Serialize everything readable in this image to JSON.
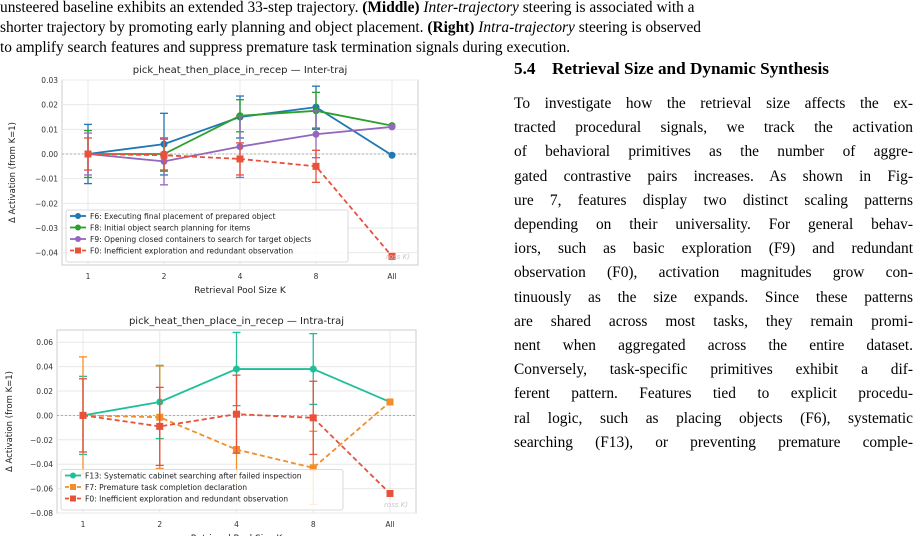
{
  "caption": {
    "line1_a": "unsteered baseline exhibits an extended 33-step trajectory. ",
    "line1_b": "(Middle)",
    "line1_c": " ",
    "line1_d": "Inter-trajectory",
    "line1_e": " steering is associated with a",
    "line2_a": "shorter trajectory by promoting early planning and object placement. ",
    "line2_b": "(Right)",
    "line2_c": " ",
    "line2_d": "Intra-trajectory",
    "line2_e": " steering is observed",
    "line3": "to amplify search features and suppress premature task termination signals during execution."
  },
  "section": {
    "number": "5.4",
    "title": "Retrieval Size and Dynamic Synthesis"
  },
  "body_lines": [
    "To investigate how the retrieval size affects the ex-",
    "tracted procedural signals, we track the activation",
    "of behavioral primitives as the number of aggre-",
    "gated contrastive pairs increases. As shown in Fig-",
    "ure 7, features display two distinct scaling patterns",
    "depending on their universality. For general behav-",
    "iors, such as basic exploration (F9) and redundant",
    "observation (F0), activation magnitudes grow con-",
    "tinuously as the size expands. Since these patterns",
    "are shared across most tasks, they remain promi-",
    "nent when aggregated across the entire dataset.",
    "Conversely, task-specific primitives exhibit a dif-",
    "ferent pattern. Features tied to explicit procedu-",
    "ral logic, such as placing objects (F6), systematic",
    "searching (F13), or preventing premature comple-"
  ],
  "chart_data": [
    {
      "type": "line",
      "title": "pick_heat_then_place_in_recep — Inter-traj",
      "xlabel": "Retrieval Pool Size K",
      "ylabel": "Δ Activation (from K=1)",
      "categories": [
        "1",
        "2",
        "4",
        "8",
        "All"
      ],
      "ylim": [
        -0.045,
        0.03
      ],
      "yticks": [
        0.03,
        0.02,
        0.01,
        0.0,
        -0.01,
        -0.02,
        -0.03,
        -0.04
      ],
      "ytick_labels": [
        "0.03",
        "0.02",
        "0.01",
        "0.00",
        "−0.01",
        "−0.02",
        "−0.03",
        "−0.04"
      ],
      "grid": true,
      "legend": "bottom-left",
      "watermark": "ross K)",
      "series": [
        {
          "name": "F6: Executing final placement of prepared object",
          "color": "#1f77b4",
          "marker": "circle",
          "dashed": false,
          "values": [
            0.0,
            0.004,
            0.015,
            0.019,
            -0.0005
          ],
          "err": [
            0.012,
            0.0125,
            0.0085,
            0.0085,
            0.0
          ]
        },
        {
          "name": "F8: Initial object search planning for items",
          "color": "#2ca02c",
          "marker": "circle",
          "dashed": false,
          "values": [
            0.0,
            0.0,
            0.0155,
            0.0175,
            0.0115
          ],
          "err": [
            0.0095,
            0.0065,
            0.0065,
            0.0075,
            0.0
          ]
        },
        {
          "name": "F9: Opening closed containers to search for target objects",
          "color": "#9467bd",
          "marker": "circle",
          "dashed": false,
          "values": [
            0.0,
            -0.003,
            0.003,
            0.008,
            0.011
          ],
          "err": [
            0.0085,
            0.0095,
            0.0125,
            0.0095,
            0.0
          ]
        },
        {
          "name": "F0: Inefficient exploration and redundant observation",
          "color": "#e8513c",
          "marker": "square",
          "dashed": true,
          "values": [
            0.0,
            -0.0005,
            -0.002,
            -0.005,
            -0.0415
          ],
          "err": [
            0.0065,
            0.0065,
            0.0065,
            0.0065,
            0.0
          ]
        }
      ]
    },
    {
      "type": "line",
      "title": "pick_heat_then_place_in_recep — Intra-traj",
      "xlabel": "Retrieval Pool Size K",
      "ylabel": "Δ Activation (from K=1)",
      "categories": [
        "1",
        "2",
        "4",
        "8",
        "All"
      ],
      "ylim": [
        -0.08,
        0.07
      ],
      "yticks": [
        0.06,
        0.04,
        0.02,
        0.0,
        -0.02,
        -0.04,
        -0.06,
        -0.08
      ],
      "ytick_labels": [
        "0.06",
        "0.04",
        "0.02",
        "0.00",
        "−0.02",
        "−0.04",
        "−0.06",
        "−0.08"
      ],
      "grid": true,
      "legend": "bottom-left",
      "watermark": "ross K)",
      "series": [
        {
          "name": "F13: Systematic cabinet searching after failed inspection",
          "color": "#1fbf9a",
          "marker": "circle",
          "dashed": false,
          "values": [
            0.0,
            0.011,
            0.038,
            0.038,
            0.011
          ],
          "err": [
            0.032,
            0.03,
            0.03,
            0.029,
            0.0
          ]
        },
        {
          "name": "F7: Premature task completion declaration",
          "color": "#f28e2b",
          "marker": "square",
          "dashed": true,
          "values": [
            0.0,
            -0.0015,
            -0.028,
            -0.043,
            0.011
          ],
          "err": [
            0.048,
            0.042,
            0.03,
            0.03,
            0.0
          ]
        },
        {
          "name": "F0: Inefficient exploration and redundant observation",
          "color": "#e8513c",
          "marker": "square",
          "dashed": true,
          "values": [
            0.0,
            -0.009,
            0.001,
            -0.002,
            -0.064
          ],
          "err": [
            0.03,
            0.032,
            0.032,
            0.03,
            0.0
          ]
        }
      ]
    }
  ]
}
